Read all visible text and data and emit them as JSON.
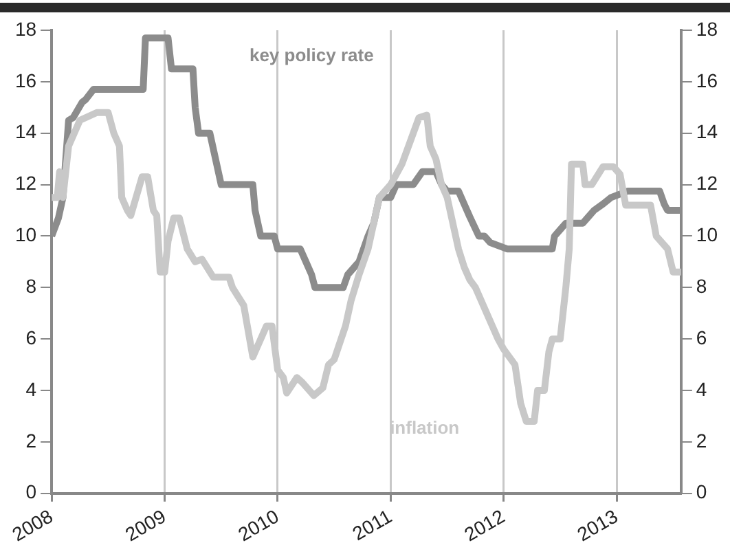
{
  "chart_data": {
    "type": "line",
    "xlim": [
      2008,
      2013.57
    ],
    "xticks": [
      2008,
      2009,
      2010,
      2011,
      2012,
      2013
    ],
    "ylim": [
      0,
      18
    ],
    "yticks": [
      0,
      2,
      4,
      6,
      8,
      10,
      12,
      14,
      16,
      18
    ],
    "y2lim": [
      0,
      18
    ],
    "y2ticks": [
      0,
      2,
      4,
      6,
      8,
      10,
      12,
      14,
      16,
      18
    ],
    "grid": "x",
    "legend": false,
    "marker": "none",
    "line_style": "solid",
    "series": [
      {
        "name": "key policy rate",
        "color": "#8c8c8c",
        "x": [
          2008,
          2008.06,
          2008.1,
          2008.15,
          2008.19,
          2008.27,
          2008.3,
          2008.37,
          2008.4,
          2008.81,
          2008.83,
          2009.03,
          2009.06,
          2009.25,
          2009.27,
          2009.3,
          2009.4,
          2009.45,
          2009.5,
          2009.78,
          2009.8,
          2009.85,
          2009.97,
          2010,
          2010.2,
          2010.25,
          2010.3,
          2010.33,
          2010.58,
          2010.62,
          2010.72,
          2010.8,
          2010.85,
          2010.9,
          2011.0,
          2011.05,
          2011.2,
          2011.28,
          2011.4,
          2011.45,
          2011.5,
          2011.6,
          2011.65,
          2011.7,
          2011.78,
          2011.83,
          2011.88,
          2012.03,
          2012.43,
          2012.45,
          2012.5,
          2012.55,
          2012.7,
          2012.75,
          2012.8,
          2012.88,
          2012.95,
          2013.1,
          2013.38,
          2013.42,
          2013.45,
          2013.57
        ],
        "values": [
          10,
          10.7,
          11.5,
          14.5,
          14.6,
          15.2,
          15.3,
          15.7,
          15.7,
          15.7,
          17.7,
          17.7,
          16.5,
          16.5,
          15,
          14,
          14,
          13,
          12,
          12,
          11,
          10,
          10,
          9.5,
          9.5,
          9,
          8.5,
          8,
          8,
          8.5,
          9,
          10,
          10.5,
          11.5,
          11.5,
          12,
          12,
          12.5,
          12.5,
          12,
          11.75,
          11.75,
          11.25,
          10.75,
          10,
          10,
          9.75,
          9.5,
          9.5,
          10,
          10.25,
          10.5,
          10.5,
          10.75,
          11,
          11.25,
          11.5,
          11.75,
          11.75,
          11.25,
          11,
          11
        ]
      },
      {
        "name": "inflation",
        "color": "#c8c8c8",
        "x": [
          2008,
          2008.05,
          2008.07,
          2008.1,
          2008.15,
          2008.25,
          2008.4,
          2008.5,
          2008.55,
          2008.6,
          2008.62,
          2008.67,
          2008.7,
          2008.8,
          2008.85,
          2008.9,
          2008.93,
          2008.96,
          2009.0,
          2009.03,
          2009.08,
          2009.13,
          2009.2,
          2009.27,
          2009.33,
          2009.43,
          2009.57,
          2009.6,
          2009.7,
          2009.78,
          2009.83,
          2009.9,
          2009.95,
          2010.0,
          2010.05,
          2010.08,
          2010.17,
          2010.22,
          2010.32,
          2010.4,
          2010.45,
          2010.5,
          2010.6,
          2010.65,
          2010.72,
          2010.8,
          2010.85,
          2010.9,
          2011.0,
          2011.1,
          2011.2,
          2011.25,
          2011.32,
          2011.35,
          2011.4,
          2011.45,
          2011.5,
          2011.55,
          2011.6,
          2011.65,
          2011.7,
          2011.75,
          2011.85,
          2011.95,
          2012.0,
          2012.1,
          2012.15,
          2012.2,
          2012.27,
          2012.3,
          2012.36,
          2012.4,
          2012.43,
          2012.5,
          2012.55,
          2012.58,
          2012.6,
          2012.7,
          2012.72,
          2012.78,
          2012.88,
          2012.97,
          2013.03,
          2013.08,
          2013.3,
          2013.35,
          2013.45,
          2013.5,
          2013.57
        ],
        "values": [
          11.5,
          11.5,
          12.5,
          11.5,
          13.5,
          14.5,
          14.8,
          14.8,
          14,
          13.5,
          11.5,
          11,
          10.8,
          12.3,
          12.3,
          11,
          10.8,
          8.6,
          8.6,
          9.8,
          10.7,
          10.7,
          9.5,
          9,
          9.1,
          8.4,
          8.4,
          8,
          7.3,
          5.3,
          5.8,
          6.5,
          6.5,
          4.8,
          4.5,
          3.9,
          4.5,
          4.3,
          3.8,
          4.1,
          5,
          5.2,
          6.5,
          7.5,
          8.5,
          9.5,
          10.5,
          11.5,
          12,
          12.8,
          14,
          14.6,
          14.7,
          13.5,
          13,
          12,
          11.5,
          10.5,
          9.5,
          8.8,
          8.3,
          8,
          7,
          6,
          5.6,
          5,
          3.5,
          2.8,
          2.8,
          4,
          4,
          5.5,
          6,
          6,
          8,
          9.5,
          12.8,
          12.8,
          12,
          12,
          12.7,
          12.7,
          12.4,
          11.2,
          11.2,
          10,
          9.5,
          8.6,
          8.6
        ]
      }
    ]
  }
}
